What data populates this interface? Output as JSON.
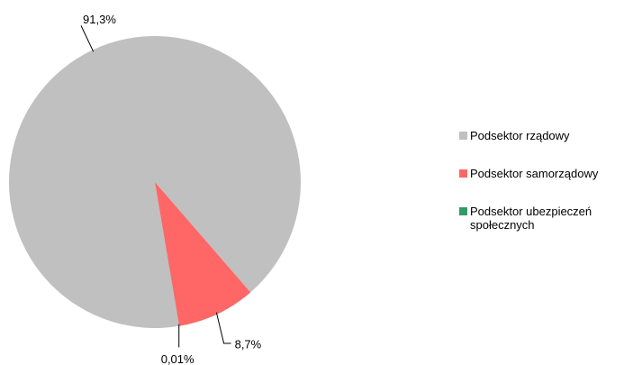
{
  "chart_data": {
    "type": "pie",
    "categories": [
      "Podsektor rządowy",
      "Podsektor samorządowy",
      "Podsektor ubezpieczeń społecznych"
    ],
    "values": [
      91.3,
      8.7,
      0.01
    ],
    "value_labels": [
      "91,3%",
      "8,7%",
      "0,01%"
    ],
    "colors": [
      "#c0c0c0",
      "#ff6666",
      "#339966"
    ],
    "legend": "right"
  }
}
